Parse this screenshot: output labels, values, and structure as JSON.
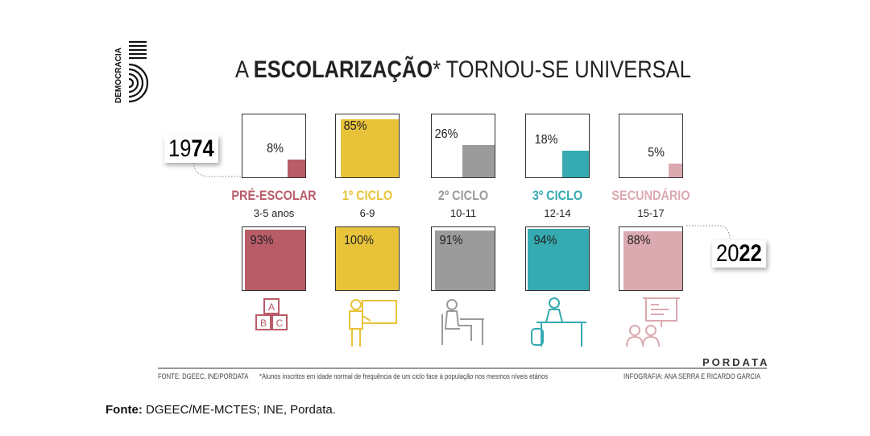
{
  "logo_text": "DEMOCRACIA",
  "title": {
    "prefix": "A",
    "bold": "ESCOLARIZAÇÃO",
    "suffix": "* TORNOU-SE UNIVERSAL"
  },
  "chart_data": {
    "type": "table",
    "title": "A ESCOLARIZAÇÃO* TORNOU-SE UNIVERSAL",
    "years": [
      "1974",
      "2022"
    ],
    "categories": [
      {
        "label": "PRÉ-ESCOLAR",
        "ages": "3-5 anos",
        "color": "#b85c68",
        "v1974": 8,
        "v2022": 93,
        "p1974": "8%",
        "p2022": "93%"
      },
      {
        "label": "1º CICLO",
        "ages": "6-9",
        "color": "#e8c33a",
        "v1974": 85,
        "v2022": 100,
        "p1974": "85%",
        "p2022": "100%"
      },
      {
        "label": "2º CICLO",
        "ages": "10-11",
        "color": "#9b9b9b",
        "v1974": 26,
        "v2022": 91,
        "p1974": "26%",
        "p2022": "91%"
      },
      {
        "label": "3º CICLO",
        "ages": "12-14",
        "color": "#35aab0",
        "v1974": 18,
        "v2022": 94,
        "p1974": "18%",
        "p2022": "94%"
      },
      {
        "label": "SECUNDÁRIO",
        "ages": "15-17",
        "color": "#dba9b0",
        "v1974": 5,
        "v2022": 88,
        "p1974": "5%",
        "p2022": "88%"
      }
    ]
  },
  "year_1974": {
    "a": "19",
    "b": "74"
  },
  "year_2022": {
    "a": "20",
    "b": "22"
  },
  "footer": {
    "source": "FONTE: DGEEC, INE/PORDATA",
    "note": "*Alunos inscritos em idade normal de frequência de um ciclo face à população nos mesmos níveis etários",
    "credits": "INFOGRAFIA: ANA SERRA E RICARDO GARCIA",
    "brand": "PORDATA"
  },
  "caption": {
    "label": "Fonte:",
    "text": " DGEEC/ME-MCTES; INE, Pordata."
  }
}
